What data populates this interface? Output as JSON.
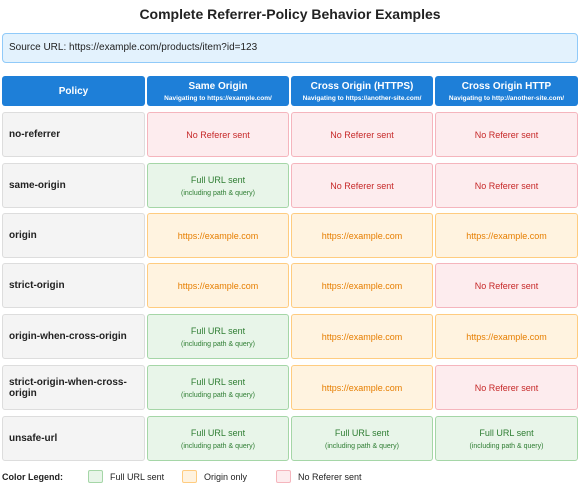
{
  "title": "Complete Referrer-Policy Behavior Examples",
  "source": "Source URL: https://example.com/products/item?id=123",
  "table": {
    "header": [
      {
        "title": "Policy"
      },
      {
        "title": "Same Origin",
        "subtitle": "Navigating to https://example.com/"
      },
      {
        "title": "Cross Origin (HTTPS)",
        "subtitle": "Navigating to https://another-site.com/"
      },
      {
        "title": "Cross Origin HTTP",
        "subtitle": "Navigating to http://another-site.com/"
      }
    ],
    "rows": [
      {
        "policy": "no-referrer",
        "cells": [
          {
            "text": "No Referer sent",
            "color": "#fdecee"
          },
          {
            "text": "No Referer sent",
            "color": "#fdecee"
          },
          {
            "text": "No Referer sent",
            "color": "#fdecee"
          }
        ]
      },
      {
        "policy": "same-origin",
        "cells": [
          {
            "text": "Full URL sent",
            "note": "(including path & query)",
            "color": "#e8f5e9"
          },
          {
            "text": "No Referer sent",
            "color": "#fdecee"
          },
          {
            "text": "No Referer sent",
            "color": "#fdecee"
          }
        ]
      },
      {
        "policy": "origin",
        "cells": [
          {
            "text": "https://example.com",
            "color": "#fff3e0"
          },
          {
            "text": "https://example.com",
            "color": "#fff3e0"
          },
          {
            "text": "https://example.com",
            "color": "#fff3e0"
          }
        ]
      },
      {
        "policy": "strict-origin",
        "cells": [
          {
            "text": "https://example.com",
            "color": "#fff3e0"
          },
          {
            "text": "https://example.com",
            "color": "#fff3e0"
          },
          {
            "text": "No Referer sent",
            "color": "#fdecee"
          }
        ]
      },
      {
        "policy": "origin-when-cross-origin",
        "cells": [
          {
            "text": "Full URL sent",
            "note": "(including path & query)",
            "color": "#e8f5e9"
          },
          {
            "text": "https://example.com",
            "color": "#fff3e0"
          },
          {
            "text": "https://example.com",
            "color": "#fff3e0"
          }
        ]
      },
      {
        "policy": "strict-origin-when-cross-origin",
        "cells": [
          {
            "text": "Full URL sent",
            "note": "(including path & query)",
            "color": "#e8f5e9"
          },
          {
            "text": "https://example.com",
            "color": "#fff3e0"
          },
          {
            "text": "No Referer sent",
            "color": "#fdecee"
          }
        ]
      },
      {
        "policy": "unsafe-url",
        "cells": [
          {
            "text": "Full URL sent",
            "note": "(including path & query)",
            "color": "#e8f5e9"
          },
          {
            "text": "Full URL sent",
            "note": "(including path & query)",
            "color": "#e8f5e9"
          },
          {
            "text": "Full URL sent",
            "note": "(including path & query)",
            "color": "#e8f5e9"
          }
        ]
      }
    ]
  },
  "legend": {
    "title": "Color Legend:",
    "items": [
      {
        "name": "Full URL sent",
        "color": "#e8f5e9"
      },
      {
        "name": "Origin only",
        "color": "#fff3e0"
      },
      {
        "name": "No Referer sent",
        "color": "#fdecee"
      }
    ]
  }
}
